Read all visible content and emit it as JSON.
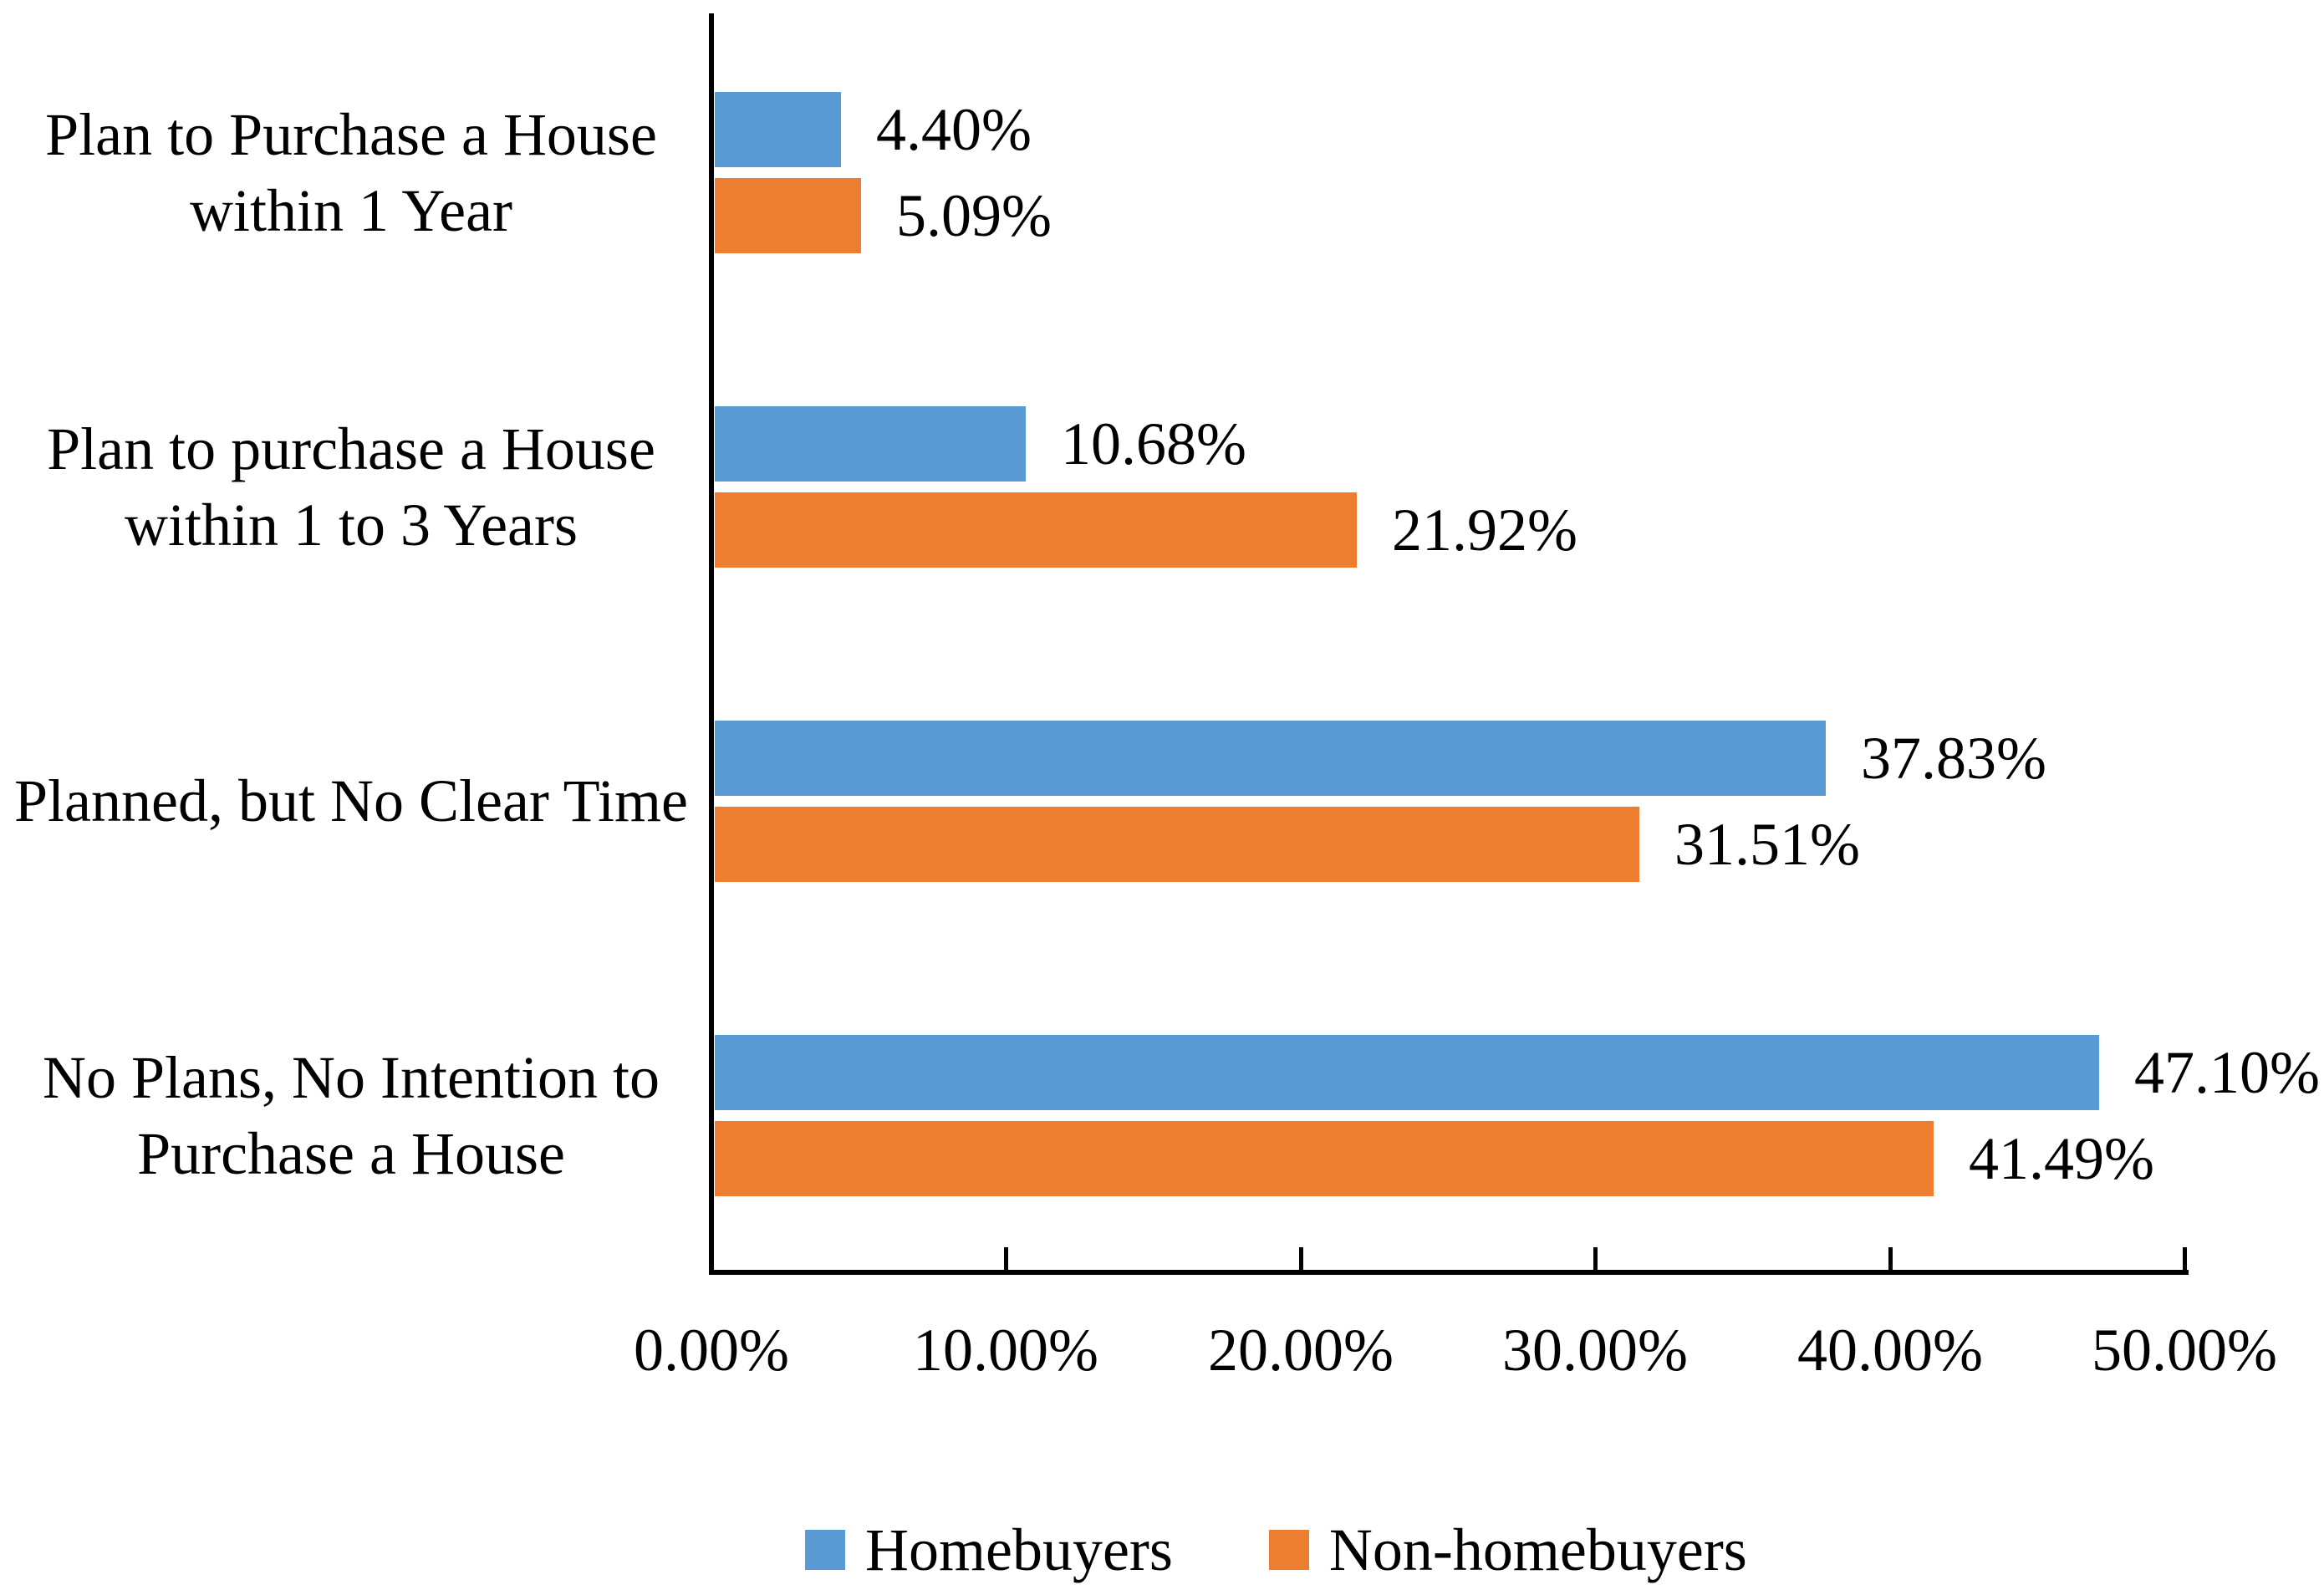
{
  "chart_data": {
    "type": "bar",
    "orientation": "horizontal",
    "title": "",
    "xlabel": "",
    "ylabel": "",
    "categories": [
      "Plan to Purchase a House within 1 Year",
      "Plan to purchase a House within 1 to 3 Years",
      "Planned, but No Clear Time",
      "No Plans, No Intention to Purchase a House"
    ],
    "category_label_lines": [
      [
        "Plan to Purchase a House",
        "within 1 Year"
      ],
      [
        "Plan to purchase a House",
        "within 1 to 3 Years"
      ],
      [
        "Planned, but No Clear Time"
      ],
      [
        "No Plans, No Intention to",
        "Purchase a House"
      ]
    ],
    "series": [
      {
        "name": "Homebuyers",
        "color": "#5B9BD5",
        "values": [
          4.4,
          10.68,
          37.83,
          47.1
        ],
        "labels": [
          "4.40%",
          "10.68%",
          "37.83%",
          "47.10%"
        ]
      },
      {
        "name": "Non-homebuyers",
        "color": "#ED7D31",
        "values": [
          5.09,
          21.92,
          31.51,
          41.49
        ],
        "labels": [
          "5.09%",
          "21.92%",
          "31.51%",
          "41.49%"
        ]
      }
    ],
    "x_axis": {
      "min": 0,
      "max": 50,
      "tick_step": 10,
      "tick_labels": [
        "0.00%",
        "10.00%",
        "20.00%",
        "30.00%",
        "40.00%",
        "50.00%"
      ]
    },
    "legend": {
      "position": "bottom",
      "entries": [
        "Homebuyers",
        "Non-homebuyers"
      ]
    },
    "grid": false
  }
}
